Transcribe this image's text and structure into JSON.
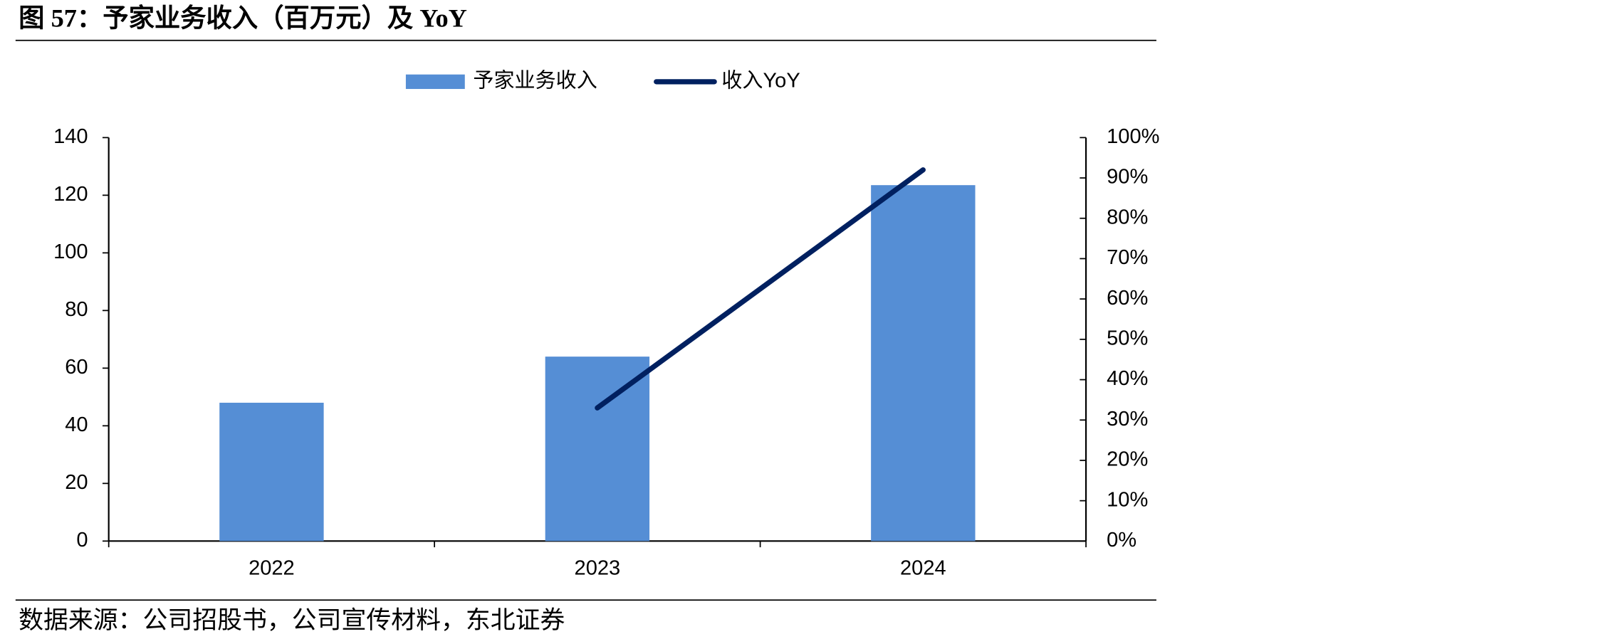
{
  "chart_data": {
    "type": "bar",
    "title": "图 57：予家业务收入（百万元）及 YoY",
    "source": "数据来源：公司招股书，公司宣传材料，东北证券",
    "categories": [
      "2022",
      "2023",
      "2024"
    ],
    "series": [
      {
        "name": "予家业务收入",
        "type": "bar",
        "color": "#558ed5",
        "values": [
          48,
          64,
          123.5
        ]
      },
      {
        "name": "收入YoY",
        "type": "line",
        "axis": "y2",
        "color": "#002060",
        "values": [
          null,
          33,
          92
        ]
      }
    ],
    "ylim": [
      0,
      140
    ],
    "yticks": [
      0,
      20,
      40,
      60,
      80,
      100,
      120,
      140
    ],
    "y2lim": [
      0,
      100
    ],
    "y2ticks": [
      {
        "value": 0,
        "label": "0%"
      },
      {
        "value": 10,
        "label": "10%"
      },
      {
        "value": 20,
        "label": "20%"
      },
      {
        "value": 30,
        "label": "30%"
      },
      {
        "value": 40,
        "label": "40%"
      },
      {
        "value": 50,
        "label": "50%"
      },
      {
        "value": 60,
        "label": "60%"
      },
      {
        "value": 70,
        "label": "70%"
      },
      {
        "value": 80,
        "label": "80%"
      },
      {
        "value": 90,
        "label": "90%"
      },
      {
        "value": 100,
        "label": "100%"
      }
    ],
    "legend": "top"
  }
}
